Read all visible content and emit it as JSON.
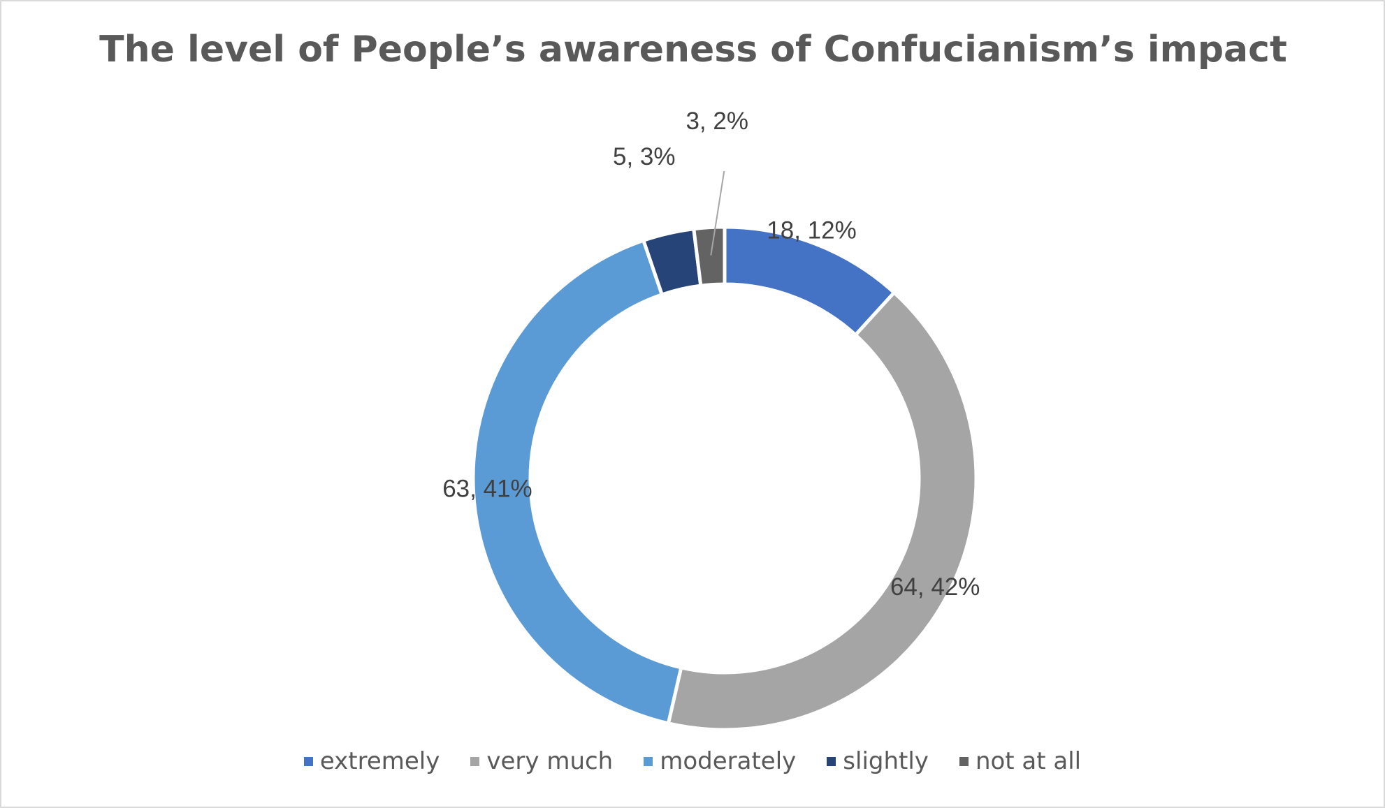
{
  "chart_data": {
    "type": "pie",
    "variant": "doughnut",
    "title": "The level of People’s awareness of Confucianism’s impact",
    "categories": [
      "extremely",
      "very much",
      "moderately",
      "slightly",
      "not at all"
    ],
    "values": [
      18,
      64,
      63,
      5,
      3
    ],
    "percent_labels": [
      "12%",
      "42%",
      "41%",
      "3%",
      "2%"
    ],
    "data_labels": [
      "18, 12%",
      "64, 42%",
      "63, 41%",
      "5, 3%",
      "3, 2%"
    ],
    "colors": [
      "#4472C4",
      "#A5A5A5",
      "#5B9BD5",
      "#264478",
      "#636363"
    ],
    "legend_position": "bottom"
  }
}
